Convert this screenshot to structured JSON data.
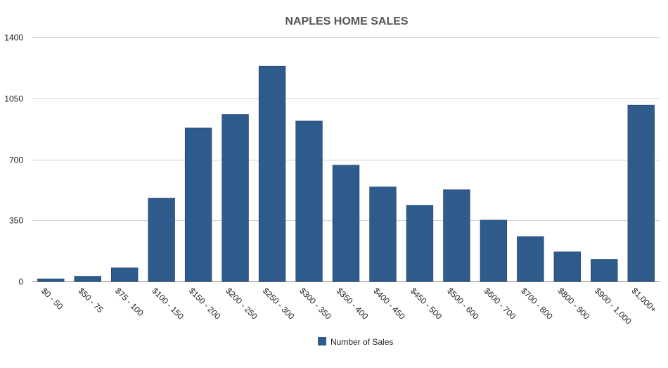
{
  "chart_data": {
    "type": "bar",
    "title": "NAPLES HOME SALES",
    "xlabel": "",
    "ylabel": "",
    "categories": [
      "$0 - 50",
      "$50 - 75",
      "$75 - 100",
      "$100 - 150",
      "$150 - 200",
      "$200 - 250",
      "$250 - 300",
      "$300 - 350",
      "$350 - 400",
      "$400 - 450",
      "$450 - 500",
      "$500 - 600",
      "$600 - 700",
      "$700 - 800",
      "$800 - 900",
      "$900 - 1,000",
      "$1,000+"
    ],
    "series": [
      {
        "name": "Number of Sales",
        "color": "#2e5a8c",
        "values": [
          15,
          30,
          78,
          478,
          880,
          958,
          1234,
          920,
          667,
          542,
          437,
          526,
          352,
          257,
          170,
          127,
          1012
        ]
      }
    ],
    "ylim": [
      0,
      1400
    ],
    "yticks": [
      0,
      350,
      700,
      1050,
      1400
    ],
    "ytick_labels": [
      "0",
      "350",
      "700",
      "1050",
      "1400"
    ],
    "grid": true,
    "legend_position": "bottom-center"
  }
}
